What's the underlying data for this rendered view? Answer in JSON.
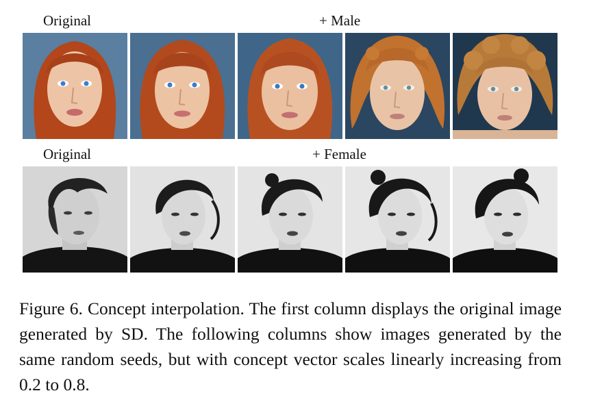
{
  "rows": [
    {
      "original_label": "Original",
      "concept_label": "+ Male"
    },
    {
      "original_label": "Original",
      "concept_label": "+ Female"
    }
  ],
  "caption": "Figure 6. Concept interpolation. The first column displays the original image generated by SD. The following columns show images generated by the same random seeds, but with concept vector scales linearly increasing from 0.2 to 0.8."
}
